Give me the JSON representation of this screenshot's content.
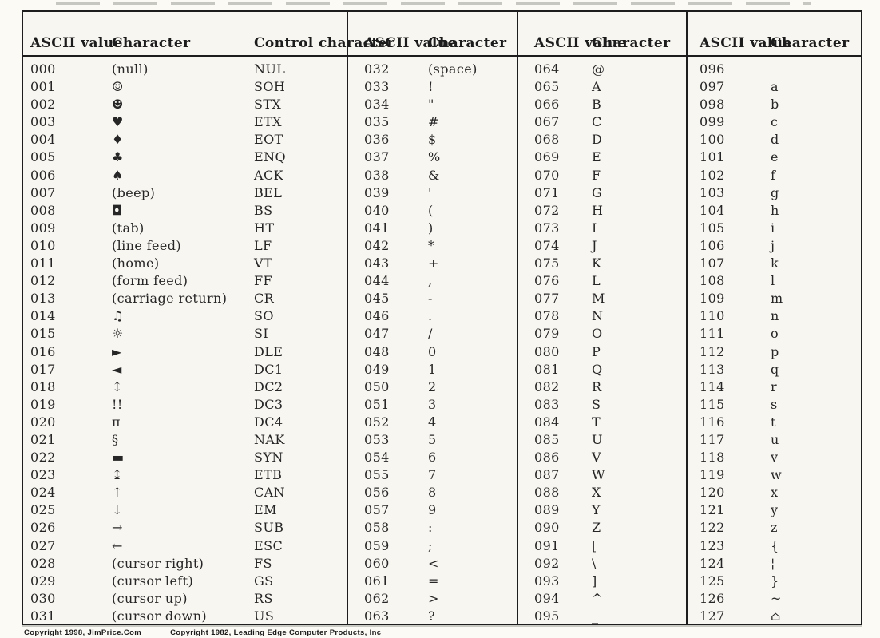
{
  "colors": {
    "paper": "#f8f6f1",
    "page_background": "#fbfaf5",
    "ink": "#262626",
    "border": "#1d1d1d"
  },
  "footer": {
    "copyright_left": "Copyright 1998, JimPrice.Com",
    "copyright_right": "Copyright 1982, Leading Edge Computer Products, Inc"
  },
  "table": {
    "groups": [
      {
        "headers": [
          "ASCII value",
          "Character",
          "Control character"
        ],
        "rows": [
          [
            "000",
            "(null)",
            "NUL"
          ],
          [
            "001",
            "☺",
            "SOH"
          ],
          [
            "002",
            "☻",
            "STX"
          ],
          [
            "003",
            "♥",
            "ETX"
          ],
          [
            "004",
            "♦",
            "EOT"
          ],
          [
            "005",
            "♣",
            "ENQ"
          ],
          [
            "006",
            "♠",
            "ACK"
          ],
          [
            "007",
            "(beep)",
            "BEL"
          ],
          [
            "008",
            "◘",
            "BS"
          ],
          [
            "009",
            "(tab)",
            "HT"
          ],
          [
            "010",
            "(line feed)",
            "LF"
          ],
          [
            "011",
            "(home)",
            "VT"
          ],
          [
            "012",
            "(form feed)",
            "FF"
          ],
          [
            "013",
            "(carriage return)",
            "CR"
          ],
          [
            "014",
            "♫",
            "SO"
          ],
          [
            "015",
            "☼",
            "SI"
          ],
          [
            "016",
            "►",
            "DLE"
          ],
          [
            "017",
            "◄",
            "DC1"
          ],
          [
            "018",
            "↕",
            "DC2"
          ],
          [
            "019",
            "!!",
            "DC3"
          ],
          [
            "020",
            "π",
            "DC4"
          ],
          [
            "021",
            "§",
            "NAK"
          ],
          [
            "022",
            "▬",
            "SYN"
          ],
          [
            "023",
            "↨",
            "ETB"
          ],
          [
            "024",
            "↑",
            "CAN"
          ],
          [
            "025",
            "↓",
            "EM"
          ],
          [
            "026",
            "→",
            "SUB"
          ],
          [
            "027",
            "←",
            "ESC"
          ],
          [
            "028",
            "(cursor right)",
            "FS"
          ],
          [
            "029",
            "(cursor left)",
            "GS"
          ],
          [
            "030",
            "(cursor up)",
            "RS"
          ],
          [
            "031",
            "(cursor down)",
            "US"
          ]
        ]
      },
      {
        "headers": [
          "ASCII value",
          "Character"
        ],
        "rows": [
          [
            "032",
            "(space)"
          ],
          [
            "033",
            "!"
          ],
          [
            "034",
            "\""
          ],
          [
            "035",
            "#"
          ],
          [
            "036",
            "$"
          ],
          [
            "037",
            "%"
          ],
          [
            "038",
            "&"
          ],
          [
            "039",
            "'"
          ],
          [
            "040",
            "("
          ],
          [
            "041",
            ")"
          ],
          [
            "042",
            "*"
          ],
          [
            "043",
            "+"
          ],
          [
            "044",
            ","
          ],
          [
            "045",
            "-"
          ],
          [
            "046",
            "."
          ],
          [
            "047",
            "/"
          ],
          [
            "048",
            "0"
          ],
          [
            "049",
            "1"
          ],
          [
            "050",
            "2"
          ],
          [
            "051",
            "3"
          ],
          [
            "052",
            "4"
          ],
          [
            "053",
            "5"
          ],
          [
            "054",
            "6"
          ],
          [
            "055",
            "7"
          ],
          [
            "056",
            "8"
          ],
          [
            "057",
            "9"
          ],
          [
            "058",
            ":"
          ],
          [
            "059",
            ";"
          ],
          [
            "060",
            "<"
          ],
          [
            "061",
            "="
          ],
          [
            "062",
            ">"
          ],
          [
            "063",
            "?"
          ]
        ]
      },
      {
        "headers": [
          "ASCII value",
          "Character"
        ],
        "rows": [
          [
            "064",
            "@"
          ],
          [
            "065",
            "A"
          ],
          [
            "066",
            "B"
          ],
          [
            "067",
            "C"
          ],
          [
            "068",
            "D"
          ],
          [
            "069",
            "E"
          ],
          [
            "070",
            "F"
          ],
          [
            "071",
            "G"
          ],
          [
            "072",
            "H"
          ],
          [
            "073",
            "I"
          ],
          [
            "074",
            "J"
          ],
          [
            "075",
            "K"
          ],
          [
            "076",
            "L"
          ],
          [
            "077",
            "M"
          ],
          [
            "078",
            "N"
          ],
          [
            "079",
            "O"
          ],
          [
            "080",
            "P"
          ],
          [
            "081",
            "Q"
          ],
          [
            "082",
            "R"
          ],
          [
            "083",
            "S"
          ],
          [
            "084",
            "T"
          ],
          [
            "085",
            "U"
          ],
          [
            "086",
            "V"
          ],
          [
            "087",
            "W"
          ],
          [
            "088",
            "X"
          ],
          [
            "089",
            "Y"
          ],
          [
            "090",
            "Z"
          ],
          [
            "091",
            "["
          ],
          [
            "092",
            "\\"
          ],
          [
            "093",
            "]"
          ],
          [
            "094",
            "^"
          ],
          [
            "095",
            "_"
          ]
        ]
      },
      {
        "headers": [
          "ASCII value",
          "Character"
        ],
        "rows": [
          [
            "096",
            ""
          ],
          [
            "097",
            "a"
          ],
          [
            "098",
            "b"
          ],
          [
            "099",
            "c"
          ],
          [
            "100",
            "d"
          ],
          [
            "101",
            "e"
          ],
          [
            "102",
            "f"
          ],
          [
            "103",
            "g"
          ],
          [
            "104",
            "h"
          ],
          [
            "105",
            "i"
          ],
          [
            "106",
            "j"
          ],
          [
            "107",
            "k"
          ],
          [
            "108",
            "l"
          ],
          [
            "109",
            "m"
          ],
          [
            "110",
            "n"
          ],
          [
            "111",
            "o"
          ],
          [
            "112",
            "p"
          ],
          [
            "113",
            "q"
          ],
          [
            "114",
            "r"
          ],
          [
            "115",
            "s"
          ],
          [
            "116",
            "t"
          ],
          [
            "117",
            "u"
          ],
          [
            "118",
            "v"
          ],
          [
            "119",
            "w"
          ],
          [
            "120",
            "x"
          ],
          [
            "121",
            "y"
          ],
          [
            "122",
            "z"
          ],
          [
            "123",
            "{"
          ],
          [
            "124",
            "¦"
          ],
          [
            "125",
            "}"
          ],
          [
            "126",
            "~"
          ],
          [
            "127",
            "⌂"
          ]
        ]
      }
    ]
  }
}
